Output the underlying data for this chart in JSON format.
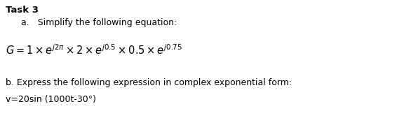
{
  "title": "Task 3",
  "line_a": "a.   Simplify the following equation:",
  "equation": "$G=1\\times e^{j2\\pi}\\times 2\\times e^{j0.5}\\times 0.5\\times e^{j0.75}$",
  "line_b": "b. Express the following expression in complex exponential form:",
  "line_b2": "v=20sin (1000t-30°)",
  "bg_color": "#ffffff",
  "text_color": "#000000",
  "title_fontsize": 9.5,
  "body_fontsize": 9.0,
  "eq_fontsize": 10.5
}
